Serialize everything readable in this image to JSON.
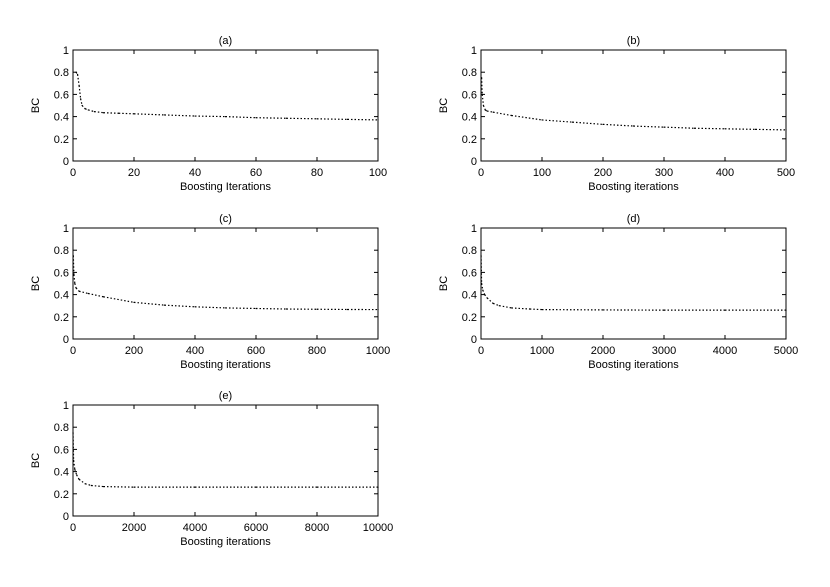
{
  "chart_data": [
    {
      "type": "line",
      "title": "(a)",
      "xlabel": "Boosting Iterations",
      "ylabel": "BC",
      "xlim": [
        0,
        100
      ],
      "ylim": [
        0,
        1
      ],
      "xticks": [
        "0",
        "20",
        "40",
        "60",
        "80",
        "100"
      ],
      "yticks": [
        "0",
        "0.2",
        "0.4",
        "0.6",
        "0.8",
        "1"
      ],
      "line_style": "dotted",
      "series": [
        {
          "x": [
            1,
            1.5,
            2,
            2.5,
            3,
            4,
            5,
            7,
            10,
            15,
            20,
            30,
            40,
            50,
            60,
            70,
            80,
            90,
            100
          ],
          "y": [
            0.8,
            0.78,
            0.68,
            0.56,
            0.5,
            0.47,
            0.46,
            0.445,
            0.435,
            0.43,
            0.425,
            0.415,
            0.405,
            0.4,
            0.39,
            0.385,
            0.38,
            0.375,
            0.37
          ]
        }
      ]
    },
    {
      "type": "line",
      "title": "(b)",
      "xlabel": "Boosting iterations",
      "ylabel": "BC",
      "xlim": [
        0,
        500
      ],
      "ylim": [
        0,
        1
      ],
      "xticks": [
        "0",
        "100",
        "200",
        "300",
        "400",
        "500"
      ],
      "yticks": [
        "0",
        "0.2",
        "0.4",
        "0.6",
        "0.8",
        "1"
      ],
      "line_style": "dotted",
      "series": [
        {
          "x": [
            1,
            2,
            4,
            7,
            10,
            20,
            50,
            100,
            150,
            200,
            250,
            300,
            350,
            400,
            450,
            500
          ],
          "y": [
            0.75,
            0.6,
            0.5,
            0.46,
            0.45,
            0.44,
            0.41,
            0.37,
            0.35,
            0.33,
            0.315,
            0.305,
            0.295,
            0.29,
            0.285,
            0.28
          ]
        }
      ]
    },
    {
      "type": "line",
      "title": "(c)",
      "xlabel": "Boosting iterations",
      "ylabel": "BC",
      "xlim": [
        0,
        1000
      ],
      "ylim": [
        0,
        1
      ],
      "xticks": [
        "0",
        "200",
        "400",
        "600",
        "800",
        "1000"
      ],
      "yticks": [
        "0",
        "0.2",
        "0.4",
        "0.6",
        "0.8",
        "1"
      ],
      "line_style": "dotted",
      "series": [
        {
          "x": [
            1,
            3,
            6,
            10,
            20,
            50,
            100,
            200,
            300,
            400,
            500,
            600,
            700,
            800,
            900,
            1000
          ],
          "y": [
            0.75,
            0.58,
            0.5,
            0.46,
            0.43,
            0.41,
            0.38,
            0.33,
            0.305,
            0.29,
            0.28,
            0.275,
            0.27,
            0.268,
            0.266,
            0.265
          ]
        }
      ]
    },
    {
      "type": "line",
      "title": "(d)",
      "xlabel": "Boosting iterations",
      "ylabel": "BC",
      "xlim": [
        0,
        5000
      ],
      "ylim": [
        0,
        1
      ],
      "xticks": [
        "0",
        "1000",
        "2000",
        "3000",
        "4000",
        "5000"
      ],
      "yticks": [
        "0",
        "0.2",
        "0.4",
        "0.6",
        "0.8",
        "1"
      ],
      "line_style": "dotted",
      "series": [
        {
          "x": [
            1,
            10,
            30,
            60,
            100,
            200,
            300,
            500,
            800,
            1000,
            2000,
            3000,
            4000,
            5000
          ],
          "y": [
            0.75,
            0.5,
            0.44,
            0.4,
            0.37,
            0.32,
            0.3,
            0.28,
            0.27,
            0.265,
            0.262,
            0.26,
            0.26,
            0.26
          ]
        }
      ]
    },
    {
      "type": "line",
      "title": "(e)",
      "xlabel": "Boosting iterations",
      "ylabel": "BC",
      "xlim": [
        0,
        10000
      ],
      "ylim": [
        0,
        1
      ],
      "xticks": [
        "0",
        "2000",
        "4000",
        "6000",
        "8000",
        "10000"
      ],
      "yticks": [
        "0",
        "0.2",
        "0.4",
        "0.6",
        "0.8",
        "1"
      ],
      "line_style": "dotted",
      "series": [
        {
          "x": [
            1,
            20,
            60,
            120,
            200,
            400,
            600,
            1000,
            2000,
            4000,
            6000,
            8000,
            10000
          ],
          "y": [
            0.75,
            0.5,
            0.42,
            0.37,
            0.33,
            0.29,
            0.275,
            0.265,
            0.26,
            0.26,
            0.26,
            0.26,
            0.26
          ]
        }
      ]
    }
  ]
}
